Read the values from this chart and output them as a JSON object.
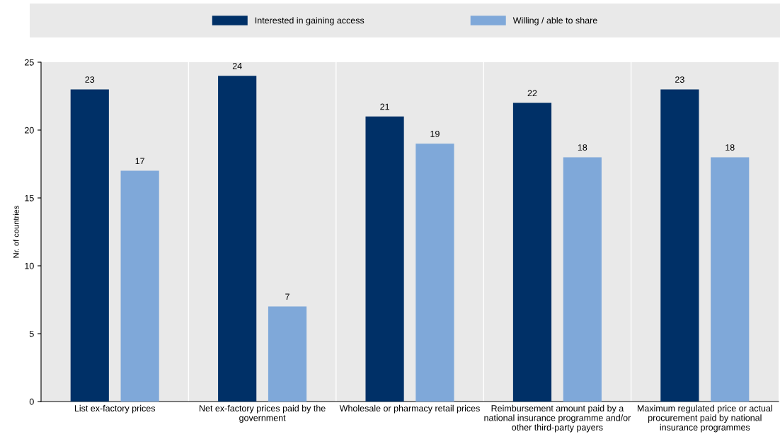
{
  "chart_data": {
    "type": "bar",
    "ylabel": "Nr. of countries",
    "categories": [
      "List ex-factory prices",
      "Net ex-factory prices paid by the\ngovernment",
      "Wholesale or pharmacy retail prices",
      "Reimbursement amount paid by a\nnational insurance programme and/or\nother third-party payers",
      "Maximum regulated price or actual\nprocurement paid by national\ninsurance programmes"
    ],
    "series": [
      {
        "name": "Interested in gaining access",
        "color": "#003067",
        "values": [
          23,
          24,
          21,
          22,
          23
        ]
      },
      {
        "name": "Willing / able to share",
        "color": "#7fa8d9",
        "values": [
          17,
          7,
          19,
          18,
          18
        ]
      }
    ],
    "ylim": [
      0,
      25
    ],
    "yticks": [
      0,
      5,
      10,
      15,
      20,
      25
    ],
    "grid": "x",
    "legend": "top",
    "data_labels": true
  }
}
